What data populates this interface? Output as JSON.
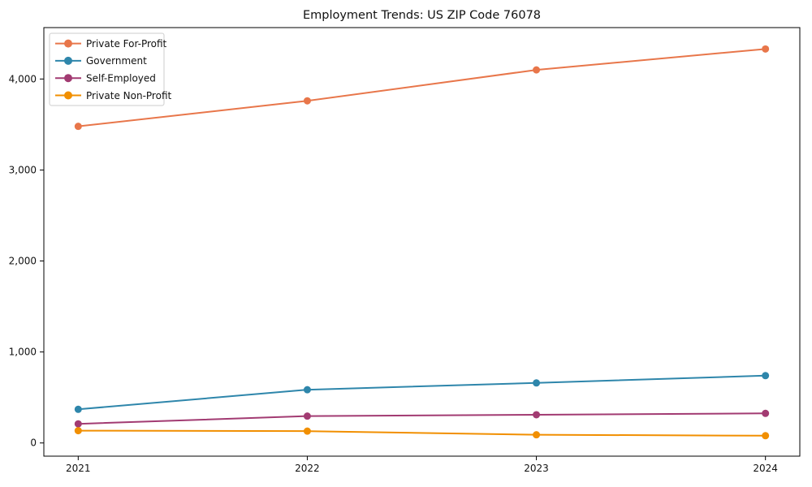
{
  "title": "Employment Trends: US ZIP Code 76078",
  "chart_data": {
    "type": "line",
    "title": "Employment Trends: US ZIP Code 76078",
    "xlabel": "",
    "ylabel": "",
    "x": [
      2021,
      2022,
      2023,
      2024
    ],
    "x_tick_labels": [
      "2021",
      "2022",
      "2023",
      "2024"
    ],
    "y_ticks": [
      0,
      1000,
      2000,
      3000,
      4000
    ],
    "y_tick_labels": [
      "0",
      "1,000",
      "2,000",
      "3,000",
      "4,000"
    ],
    "xlim": [
      2020.85,
      2024.15
    ],
    "ylim": [
      -145,
      4565
    ],
    "grid": false,
    "legend_position": "upper-left",
    "series": [
      {
        "name": "Private For-Profit",
        "color": "#e8764a",
        "values": [
          3480,
          3760,
          4100,
          4330
        ]
      },
      {
        "name": "Government",
        "color": "#2e86ab",
        "values": [
          370,
          585,
          660,
          740
        ]
      },
      {
        "name": "Self-Employed",
        "color": "#a23b72",
        "values": [
          210,
          295,
          310,
          325
        ]
      },
      {
        "name": "Private Non-Profit",
        "color": "#f18f01",
        "values": [
          135,
          130,
          90,
          80
        ]
      }
    ],
    "axis_color": "#000000",
    "background_color": "#ffffff"
  }
}
